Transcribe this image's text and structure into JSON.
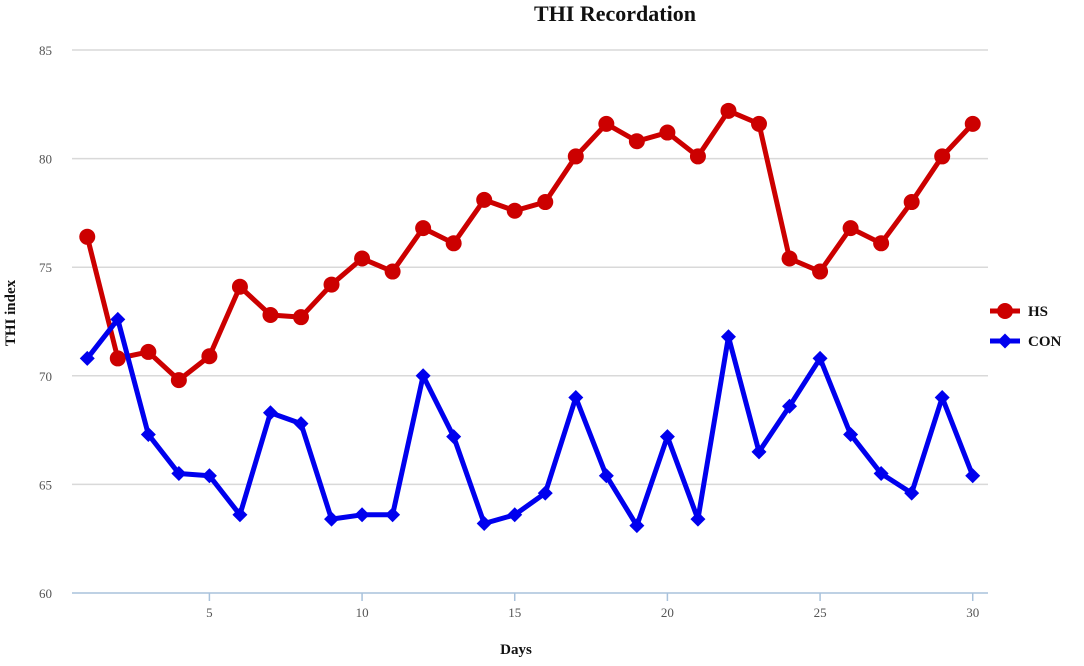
{
  "chart_data": {
    "type": "line",
    "title": "THI Recordation",
    "xlabel": "Days",
    "ylabel": "THI index",
    "xlim": [
      0.5,
      30.5
    ],
    "ylim": [
      60,
      85
    ],
    "xticks": [
      5,
      10,
      15,
      20,
      25,
      30
    ],
    "yticks": [
      60,
      65,
      70,
      75,
      80,
      85
    ],
    "grid": "horizontal",
    "legend_position": "right",
    "x": [
      1,
      2,
      3,
      4,
      5,
      6,
      7,
      8,
      9,
      10,
      11,
      12,
      13,
      14,
      15,
      16,
      17,
      18,
      19,
      20,
      21,
      22,
      23,
      24,
      25,
      26,
      27,
      28,
      29,
      30
    ],
    "series": [
      {
        "name": "HS",
        "color": "#cc0000",
        "marker": "circle",
        "values": [
          76.4,
          70.8,
          71.1,
          69.8,
          70.9,
          74.1,
          72.8,
          72.7,
          74.2,
          75.4,
          74.8,
          76.8,
          76.1,
          78.1,
          77.6,
          78.0,
          80.1,
          81.6,
          80.8,
          81.2,
          80.1,
          82.2,
          81.6,
          75.4,
          74.8,
          76.8,
          76.1,
          78.0,
          80.1,
          81.6
        ]
      },
      {
        "name": "CON",
        "color": "#0000ee",
        "marker": "diamond",
        "values": [
          70.8,
          72.6,
          67.3,
          65.5,
          65.4,
          63.6,
          68.3,
          67.8,
          63.4,
          63.6,
          63.6,
          70.0,
          67.2,
          63.2,
          63.6,
          64.6,
          69.0,
          65.4,
          63.1,
          67.2,
          63.4,
          71.8,
          66.5,
          68.6,
          70.8,
          67.3,
          65.5,
          64.6,
          69.0,
          65.4
        ]
      }
    ]
  }
}
